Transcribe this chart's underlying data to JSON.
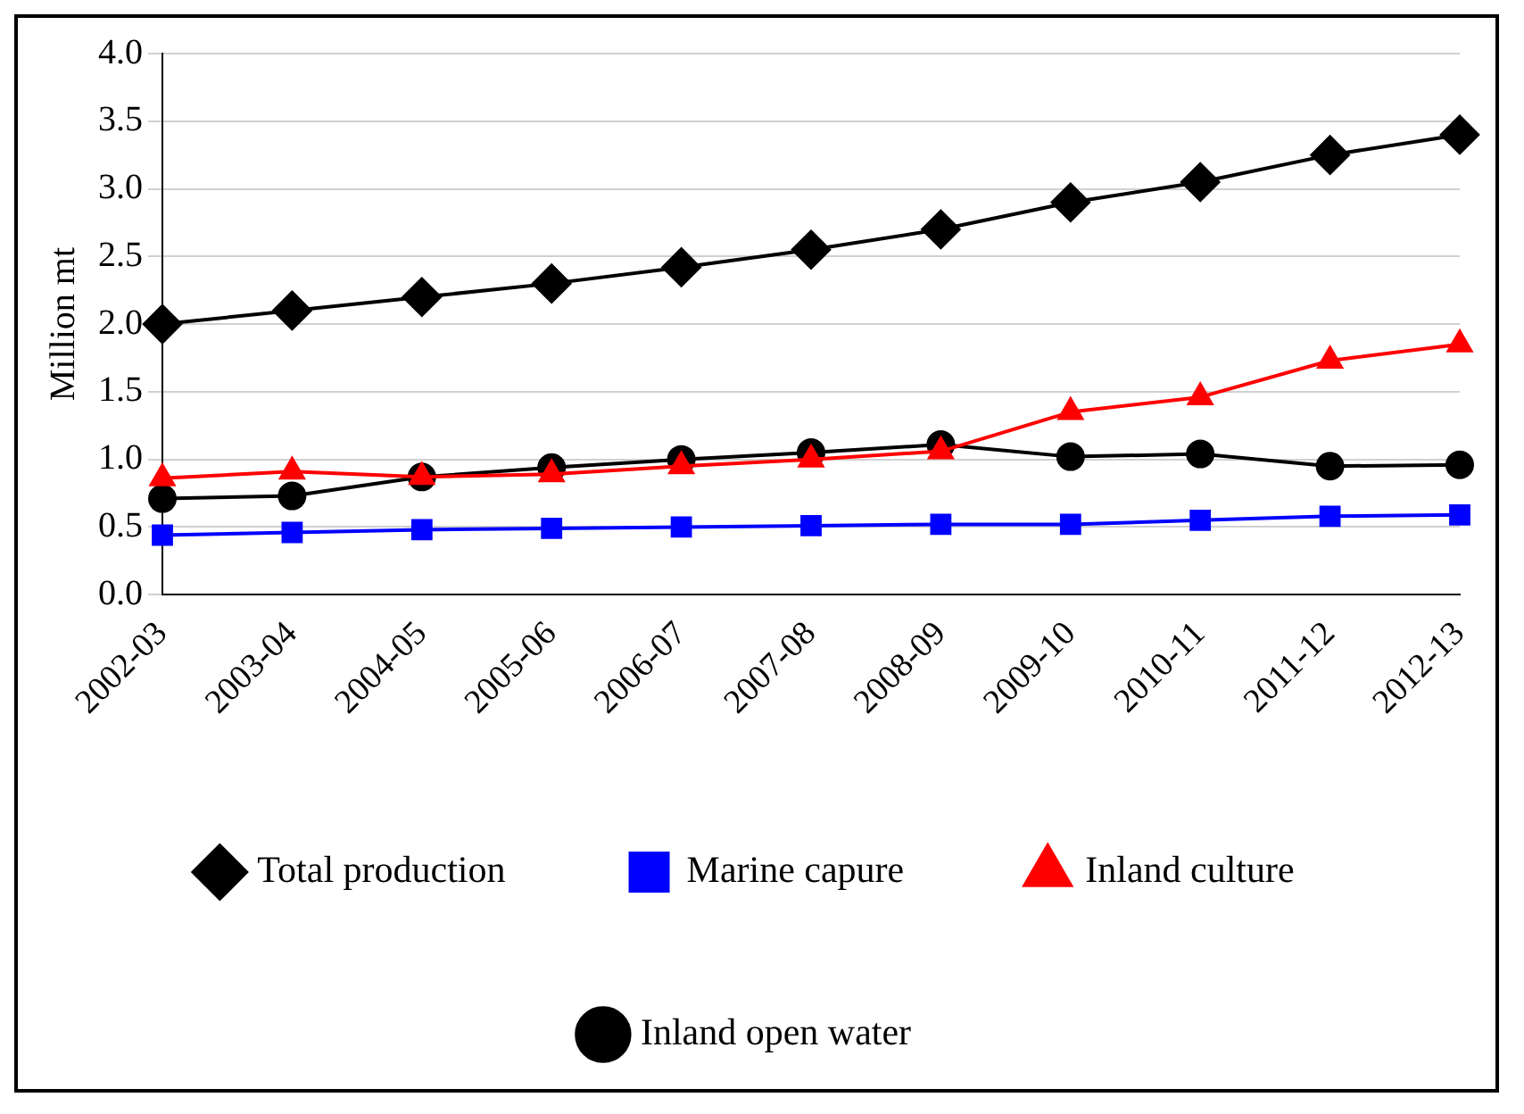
{
  "chart_data": {
    "type": "line",
    "ylabel": "Million mt",
    "categories": [
      "2002-03",
      "2003-04",
      "2004-05",
      "2005-06",
      "2006-07",
      "2007-08",
      "2008-09",
      "2009-10",
      "2010-11",
      "2011-12",
      "2012-13"
    ],
    "series": [
      {
        "name": "Inland open water",
        "color": "#000000",
        "marker": "circle",
        "values": [
          0.71,
          0.73,
          0.87,
          0.94,
          1.0,
          1.05,
          1.11,
          1.02,
          1.04,
          0.95,
          0.96
        ]
      },
      {
        "name": "Inland culture",
        "color": "#ff0000",
        "marker": "triangle",
        "values": [
          0.86,
          0.91,
          0.87,
          0.89,
          0.95,
          1.0,
          1.06,
          1.35,
          1.46,
          1.73,
          1.85
        ]
      },
      {
        "name": "Marine capure",
        "color": "#0000ff",
        "marker": "square",
        "values": [
          0.44,
          0.46,
          0.48,
          0.49,
          0.5,
          0.51,
          0.52,
          0.52,
          0.55,
          0.58,
          0.59
        ]
      },
      {
        "name": "Total production",
        "color": "#000000",
        "marker": "diamond",
        "values": [
          2.0,
          2.1,
          2.2,
          2.3,
          2.42,
          2.55,
          2.7,
          2.9,
          3.05,
          3.25,
          3.4
        ]
      }
    ],
    "ylim": [
      0,
      4
    ],
    "yticks": [
      {
        "value": 0,
        "label": "0.0"
      },
      0.5,
      {
        "value": 1,
        "label": "1.0"
      },
      1.5,
      {
        "value": 2,
        "label": "2.0"
      },
      2.5,
      {
        "value": 3,
        "label": "3.0"
      },
      3.5,
      {
        "value": 4,
        "label": "4.0"
      }
    ],
    "grid": "y",
    "legend": "bottom"
  }
}
